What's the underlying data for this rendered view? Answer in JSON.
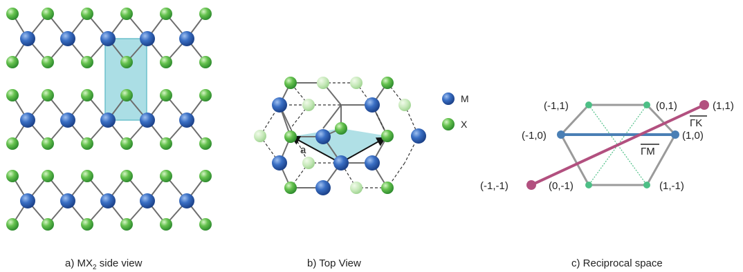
{
  "panels": {
    "a": {
      "caption_main": "a) MX",
      "caption_sub": "2",
      "caption_rest": " side view"
    },
    "b": {
      "caption": "b) Top View",
      "vector_label": "a"
    },
    "c": {
      "caption": "c) Reciprocal space",
      "points": {
        "m11": "(-1,1)",
        "p01": "(0,1)",
        "p11": "(1,1)",
        "m10": "(-1,0)",
        "p10": "(1,0)",
        "m1m1": "(-1,-1)",
        "p0m1": "(0,-1)",
        "p1m1": "(1,-1)"
      },
      "gamma_k": "ΓK",
      "gamma_m": "ΓM"
    }
  },
  "legend": {
    "metal": "M",
    "chalcogen": "X"
  },
  "colors": {
    "metal": "#2f63b8",
    "chalcogen": "#5fbf4a",
    "cell": "#8fd3dc",
    "bond": "#6d6d6d",
    "gk_line": "#b2507f",
    "gm_line": "#4a7fb5",
    "hex": "#9a9a9a",
    "sym": "#4dbf86"
  }
}
